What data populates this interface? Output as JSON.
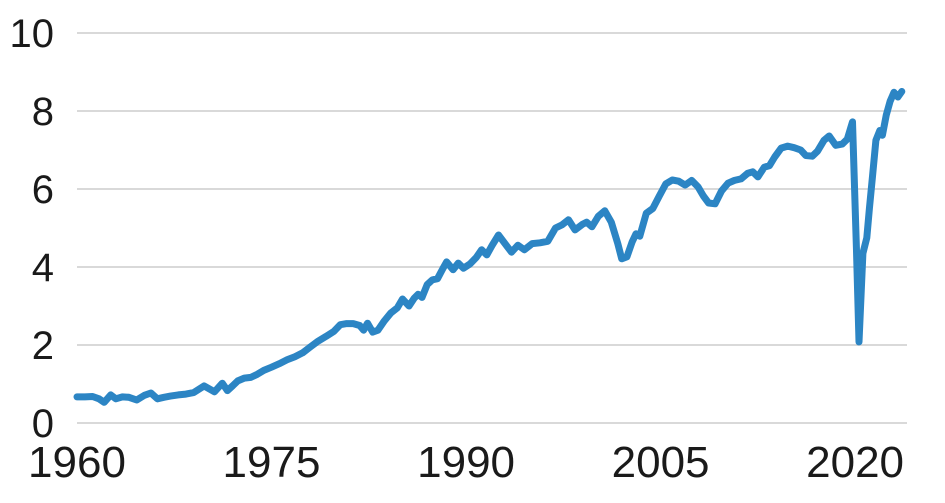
{
  "page": {
    "background": "#FFFFFF"
  },
  "chart_data": {
    "type": "line",
    "title": "",
    "xlabel": "",
    "ylabel": "",
    "xlim": [
      1960,
      2024
    ],
    "ylim": [
      0,
      10
    ],
    "x_tick_labels": [
      "1960",
      "1975",
      "1990",
      "2005",
      "2020"
    ],
    "x_tick_values": [
      1960,
      1975,
      1990,
      2005,
      2020
    ],
    "y_tick_labels": [
      "0",
      "2",
      "4",
      "6",
      "8",
      "10"
    ],
    "y_tick_values": [
      0,
      2,
      4,
      6,
      8,
      10
    ],
    "grid": "horizontal-only",
    "legend_position": "none",
    "line_width": 7,
    "colors": {
      "line": "#2C85C4",
      "grid": "#D9D9D9",
      "tick_text": "#1A1A1A",
      "background": "#FFFFFF"
    },
    "series": [
      {
        "name": "series-1",
        "points": [
          [
            1960.0,
            0.67
          ],
          [
            1960.6,
            0.67
          ],
          [
            1961.2,
            0.68
          ],
          [
            1961.7,
            0.62
          ],
          [
            1962.1,
            0.53
          ],
          [
            1962.6,
            0.72
          ],
          [
            1963.0,
            0.62
          ],
          [
            1963.5,
            0.67
          ],
          [
            1964.0,
            0.66
          ],
          [
            1964.6,
            0.59
          ],
          [
            1965.2,
            0.71
          ],
          [
            1965.7,
            0.77
          ],
          [
            1966.2,
            0.62
          ],
          [
            1966.7,
            0.66
          ],
          [
            1967.2,
            0.69
          ],
          [
            1967.8,
            0.72
          ],
          [
            1968.4,
            0.74
          ],
          [
            1969.0,
            0.78
          ],
          [
            1969.8,
            0.95
          ],
          [
            1970.6,
            0.8
          ],
          [
            1971.2,
            1.02
          ],
          [
            1971.6,
            0.83
          ],
          [
            1972.0,
            0.95
          ],
          [
            1972.4,
            1.08
          ],
          [
            1972.9,
            1.15
          ],
          [
            1973.4,
            1.17
          ],
          [
            1973.9,
            1.25
          ],
          [
            1974.4,
            1.35
          ],
          [
            1975.0,
            1.43
          ],
          [
            1975.6,
            1.52
          ],
          [
            1976.2,
            1.62
          ],
          [
            1976.8,
            1.7
          ],
          [
            1977.4,
            1.8
          ],
          [
            1978.0,
            1.95
          ],
          [
            1978.6,
            2.1
          ],
          [
            1979.2,
            2.22
          ],
          [
            1979.8,
            2.35
          ],
          [
            1980.3,
            2.52
          ],
          [
            1980.8,
            2.55
          ],
          [
            1981.3,
            2.55
          ],
          [
            1981.8,
            2.5
          ],
          [
            1982.1,
            2.38
          ],
          [
            1982.4,
            2.56
          ],
          [
            1982.8,
            2.33
          ],
          [
            1983.2,
            2.38
          ],
          [
            1983.7,
            2.62
          ],
          [
            1984.2,
            2.82
          ],
          [
            1984.7,
            2.95
          ],
          [
            1985.1,
            3.18
          ],
          [
            1985.6,
            3.0
          ],
          [
            1986.0,
            3.2
          ],
          [
            1986.3,
            3.3
          ],
          [
            1986.6,
            3.22
          ],
          [
            1987.0,
            3.55
          ],
          [
            1987.4,
            3.67
          ],
          [
            1987.8,
            3.7
          ],
          [
            1988.2,
            3.95
          ],
          [
            1988.5,
            4.13
          ],
          [
            1989.0,
            3.93
          ],
          [
            1989.4,
            4.1
          ],
          [
            1989.8,
            3.97
          ],
          [
            1990.3,
            4.08
          ],
          [
            1990.8,
            4.25
          ],
          [
            1991.2,
            4.44
          ],
          [
            1991.6,
            4.31
          ],
          [
            1992.0,
            4.55
          ],
          [
            1992.5,
            4.82
          ],
          [
            1993.0,
            4.6
          ],
          [
            1993.5,
            4.38
          ],
          [
            1994.0,
            4.56
          ],
          [
            1994.5,
            4.44
          ],
          [
            1995.1,
            4.6
          ],
          [
            1995.7,
            4.62
          ],
          [
            1996.3,
            4.66
          ],
          [
            1996.9,
            5.0
          ],
          [
            1997.4,
            5.08
          ],
          [
            1997.9,
            5.21
          ],
          [
            1998.4,
            4.95
          ],
          [
            1999.0,
            5.1
          ],
          [
            1999.3,
            5.15
          ],
          [
            1999.7,
            5.03
          ],
          [
            2000.2,
            5.3
          ],
          [
            2000.7,
            5.44
          ],
          [
            2001.2,
            5.15
          ],
          [
            2001.7,
            4.6
          ],
          [
            2002.0,
            4.21
          ],
          [
            2002.4,
            4.26
          ],
          [
            2002.8,
            4.64
          ],
          [
            2003.1,
            4.85
          ],
          [
            2003.4,
            4.79
          ],
          [
            2003.9,
            5.38
          ],
          [
            2004.4,
            5.5
          ],
          [
            2004.9,
            5.82
          ],
          [
            2005.4,
            6.13
          ],
          [
            2005.9,
            6.23
          ],
          [
            2006.4,
            6.2
          ],
          [
            2006.9,
            6.1
          ],
          [
            2007.4,
            6.22
          ],
          [
            2007.9,
            6.05
          ],
          [
            2008.3,
            5.82
          ],
          [
            2008.7,
            5.64
          ],
          [
            2009.2,
            5.62
          ],
          [
            2009.7,
            5.95
          ],
          [
            2010.2,
            6.15
          ],
          [
            2010.7,
            6.22
          ],
          [
            2011.2,
            6.26
          ],
          [
            2011.7,
            6.4
          ],
          [
            2012.1,
            6.44
          ],
          [
            2012.5,
            6.31
          ],
          [
            2013.0,
            6.56
          ],
          [
            2013.4,
            6.6
          ],
          [
            2013.8,
            6.82
          ],
          [
            2014.3,
            7.05
          ],
          [
            2014.8,
            7.1
          ],
          [
            2015.3,
            7.06
          ],
          [
            2015.8,
            7.0
          ],
          [
            2016.2,
            6.86
          ],
          [
            2016.7,
            6.84
          ],
          [
            2017.1,
            6.97
          ],
          [
            2017.6,
            7.25
          ],
          [
            2018.0,
            7.36
          ],
          [
            2018.5,
            7.12
          ],
          [
            2019.0,
            7.15
          ],
          [
            2019.4,
            7.28
          ],
          [
            2019.8,
            7.72
          ],
          [
            2020.1,
            4.5
          ],
          [
            2020.3,
            2.08
          ],
          [
            2020.6,
            4.35
          ],
          [
            2020.9,
            4.75
          ],
          [
            2021.1,
            5.5
          ],
          [
            2021.35,
            6.35
          ],
          [
            2021.6,
            7.25
          ],
          [
            2021.9,
            7.5
          ],
          [
            2022.1,
            7.38
          ],
          [
            2022.4,
            7.9
          ],
          [
            2022.7,
            8.25
          ],
          [
            2023.0,
            8.48
          ],
          [
            2023.3,
            8.36
          ],
          [
            2023.6,
            8.5
          ]
        ]
      }
    ]
  }
}
